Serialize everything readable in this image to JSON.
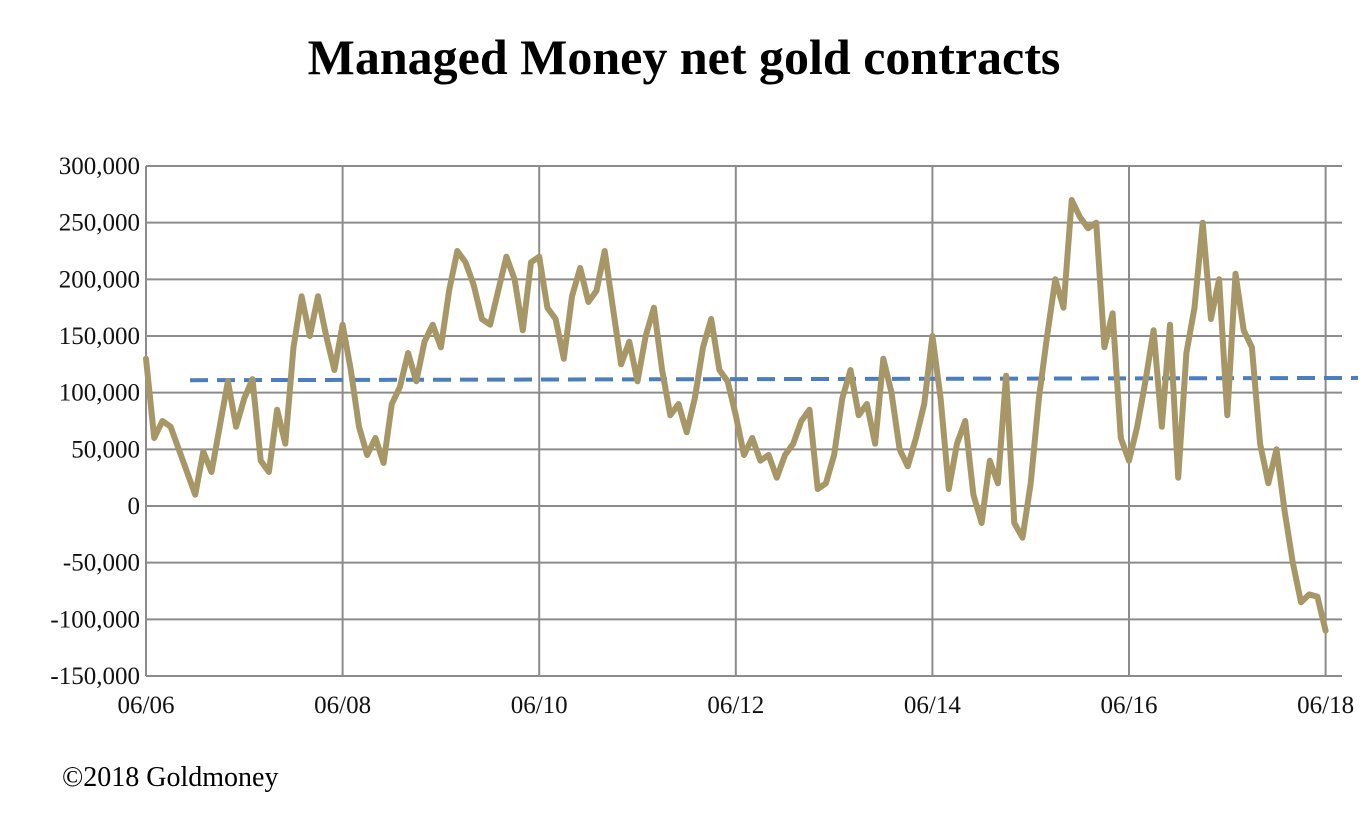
{
  "chart_data": {
    "type": "line",
    "title": "Managed Money net gold contracts",
    "xlabel": "",
    "ylabel": "",
    "ylim": [
      -150000,
      300000
    ],
    "xlim": [
      "2006-06",
      "2018-08"
    ],
    "yticks": [
      300000,
      250000,
      200000,
      150000,
      100000,
      50000,
      0,
      -50000,
      -100000,
      -150000
    ],
    "ytick_labels": [
      "300,000",
      "250,000",
      "200,000",
      "150,000",
      "100,000",
      "50,000",
      "0",
      "-50,000",
      "-100,000",
      "-150,000"
    ],
    "xticks": [
      "2006-06",
      "2008-06",
      "2010-06",
      "2012-06",
      "2014-06",
      "2016-06",
      "2018-06"
    ],
    "xtick_labels": [
      "06/06",
      "06/08",
      "06/10",
      "06/12",
      "06/14",
      "06/16",
      "06/18"
    ],
    "grid": true,
    "legend": "none",
    "colors": {
      "line": "#A89766",
      "reference": "#4A7EC0",
      "grid": "#8C8C8C"
    },
    "series": [
      {
        "values": [
          [
            "2006-06",
            130000
          ],
          [
            "2006-07",
            60000
          ],
          [
            "2006-08",
            75000
          ],
          [
            "2006-09",
            70000
          ],
          [
            "2006-10",
            50000
          ],
          [
            "2006-11",
            30000
          ],
          [
            "2006-12",
            10000
          ],
          [
            "2007-01",
            48000
          ],
          [
            "2007-02",
            30000
          ],
          [
            "2007-03",
            70000
          ],
          [
            "2007-04",
            110000
          ],
          [
            "2007-05",
            70000
          ],
          [
            "2007-06",
            95000
          ],
          [
            "2007-07",
            112000
          ],
          [
            "2007-08",
            40000
          ],
          [
            "2007-09",
            30000
          ],
          [
            "2007-10",
            85000
          ],
          [
            "2007-11",
            55000
          ],
          [
            "2007-12",
            140000
          ],
          [
            "2008-01",
            185000
          ],
          [
            "2008-02",
            150000
          ],
          [
            "2008-03",
            185000
          ],
          [
            "2008-04",
            150000
          ],
          [
            "2008-05",
            120000
          ],
          [
            "2008-06",
            160000
          ],
          [
            "2008-07",
            120000
          ],
          [
            "2008-08",
            70000
          ],
          [
            "2008-09",
            45000
          ],
          [
            "2008-10",
            60000
          ],
          [
            "2008-11",
            38000
          ],
          [
            "2008-12",
            90000
          ],
          [
            "2009-01",
            105000
          ],
          [
            "2009-02",
            135000
          ],
          [
            "2009-03",
            110000
          ],
          [
            "2009-04",
            145000
          ],
          [
            "2009-05",
            160000
          ],
          [
            "2009-06",
            140000
          ],
          [
            "2009-07",
            190000
          ],
          [
            "2009-08",
            225000
          ],
          [
            "2009-09",
            215000
          ],
          [
            "2009-10",
            195000
          ],
          [
            "2009-11",
            165000
          ],
          [
            "2009-12",
            160000
          ],
          [
            "2010-01",
            190000
          ],
          [
            "2010-02",
            220000
          ],
          [
            "2010-03",
            200000
          ],
          [
            "2010-04",
            155000
          ],
          [
            "2010-05",
            215000
          ],
          [
            "2010-06",
            220000
          ],
          [
            "2010-07",
            175000
          ],
          [
            "2010-08",
            165000
          ],
          [
            "2010-09",
            130000
          ],
          [
            "2010-10",
            185000
          ],
          [
            "2010-11",
            210000
          ],
          [
            "2010-12",
            180000
          ],
          [
            "2011-01",
            190000
          ],
          [
            "2011-02",
            225000
          ],
          [
            "2011-03",
            175000
          ],
          [
            "2011-04",
            125000
          ],
          [
            "2011-05",
            145000
          ],
          [
            "2011-06",
            110000
          ],
          [
            "2011-07",
            150000
          ],
          [
            "2011-08",
            175000
          ],
          [
            "2011-09",
            120000
          ],
          [
            "2011-10",
            80000
          ],
          [
            "2011-11",
            90000
          ],
          [
            "2011-12",
            65000
          ],
          [
            "2012-01",
            95000
          ],
          [
            "2012-02",
            140000
          ],
          [
            "2012-03",
            165000
          ],
          [
            "2012-04",
            120000
          ],
          [
            "2012-05",
            110000
          ],
          [
            "2012-06",
            80000
          ],
          [
            "2012-07",
            45000
          ],
          [
            "2012-08",
            60000
          ],
          [
            "2012-09",
            40000
          ],
          [
            "2012-10",
            45000
          ],
          [
            "2012-11",
            25000
          ],
          [
            "2012-12",
            45000
          ],
          [
            "2013-01",
            55000
          ],
          [
            "2013-02",
            75000
          ],
          [
            "2013-03",
            85000
          ],
          [
            "2013-04",
            15000
          ],
          [
            "2013-05",
            20000
          ],
          [
            "2013-06",
            45000
          ],
          [
            "2013-07",
            95000
          ],
          [
            "2013-08",
            120000
          ],
          [
            "2013-09",
            80000
          ],
          [
            "2013-10",
            90000
          ],
          [
            "2013-11",
            55000
          ],
          [
            "2013-12",
            130000
          ],
          [
            "2014-01",
            100000
          ],
          [
            "2014-02",
            50000
          ],
          [
            "2014-03",
            35000
          ],
          [
            "2014-04",
            60000
          ],
          [
            "2014-05",
            90000
          ],
          [
            "2014-06",
            150000
          ],
          [
            "2014-07",
            95000
          ],
          [
            "2014-08",
            15000
          ],
          [
            "2014-09",
            55000
          ],
          [
            "2014-10",
            75000
          ],
          [
            "2014-11",
            10000
          ],
          [
            "2014-12",
            -15000
          ],
          [
            "2015-01",
            40000
          ],
          [
            "2015-02",
            20000
          ],
          [
            "2015-03",
            115000
          ],
          [
            "2015-04",
            -15000
          ],
          [
            "2015-05",
            -28000
          ],
          [
            "2015-06",
            20000
          ],
          [
            "2015-07",
            95000
          ],
          [
            "2015-08",
            150000
          ],
          [
            "2015-09",
            200000
          ],
          [
            "2015-10",
            175000
          ],
          [
            "2015-11",
            270000
          ],
          [
            "2015-12",
            255000
          ],
          [
            "2016-01",
            245000
          ],
          [
            "2016-02",
            250000
          ],
          [
            "2016-03",
            140000
          ],
          [
            "2016-04",
            170000
          ],
          [
            "2016-05",
            60000
          ],
          [
            "2016-06",
            40000
          ],
          [
            "2016-07",
            70000
          ],
          [
            "2016-08",
            110000
          ],
          [
            "2016-09",
            155000
          ],
          [
            "2016-10",
            70000
          ],
          [
            "2016-11",
            160000
          ],
          [
            "2016-12",
            25000
          ],
          [
            "2017-01",
            135000
          ],
          [
            "2017-02",
            175000
          ],
          [
            "2017-03",
            250000
          ],
          [
            "2017-04",
            165000
          ],
          [
            "2017-05",
            200000
          ],
          [
            "2017-06",
            80000
          ],
          [
            "2017-07",
            205000
          ],
          [
            "2017-08",
            155000
          ],
          [
            "2017-09",
            140000
          ],
          [
            "2017-10",
            55000
          ],
          [
            "2017-11",
            20000
          ],
          [
            "2017-12",
            50000
          ],
          [
            "2018-01",
            -5000
          ],
          [
            "2018-02",
            -50000
          ],
          [
            "2018-03",
            -85000
          ],
          [
            "2018-04",
            -78000
          ],
          [
            "2018-05",
            -80000
          ],
          [
            "2018-06",
            -110000
          ]
        ]
      }
    ],
    "reference_line": {
      "style": "dashed",
      "values": [
        [
          "2006-12",
          111000
        ],
        [
          "2018-08",
          113000
        ]
      ]
    }
  },
  "footer": {
    "credit": "©2018 Goldmoney"
  }
}
